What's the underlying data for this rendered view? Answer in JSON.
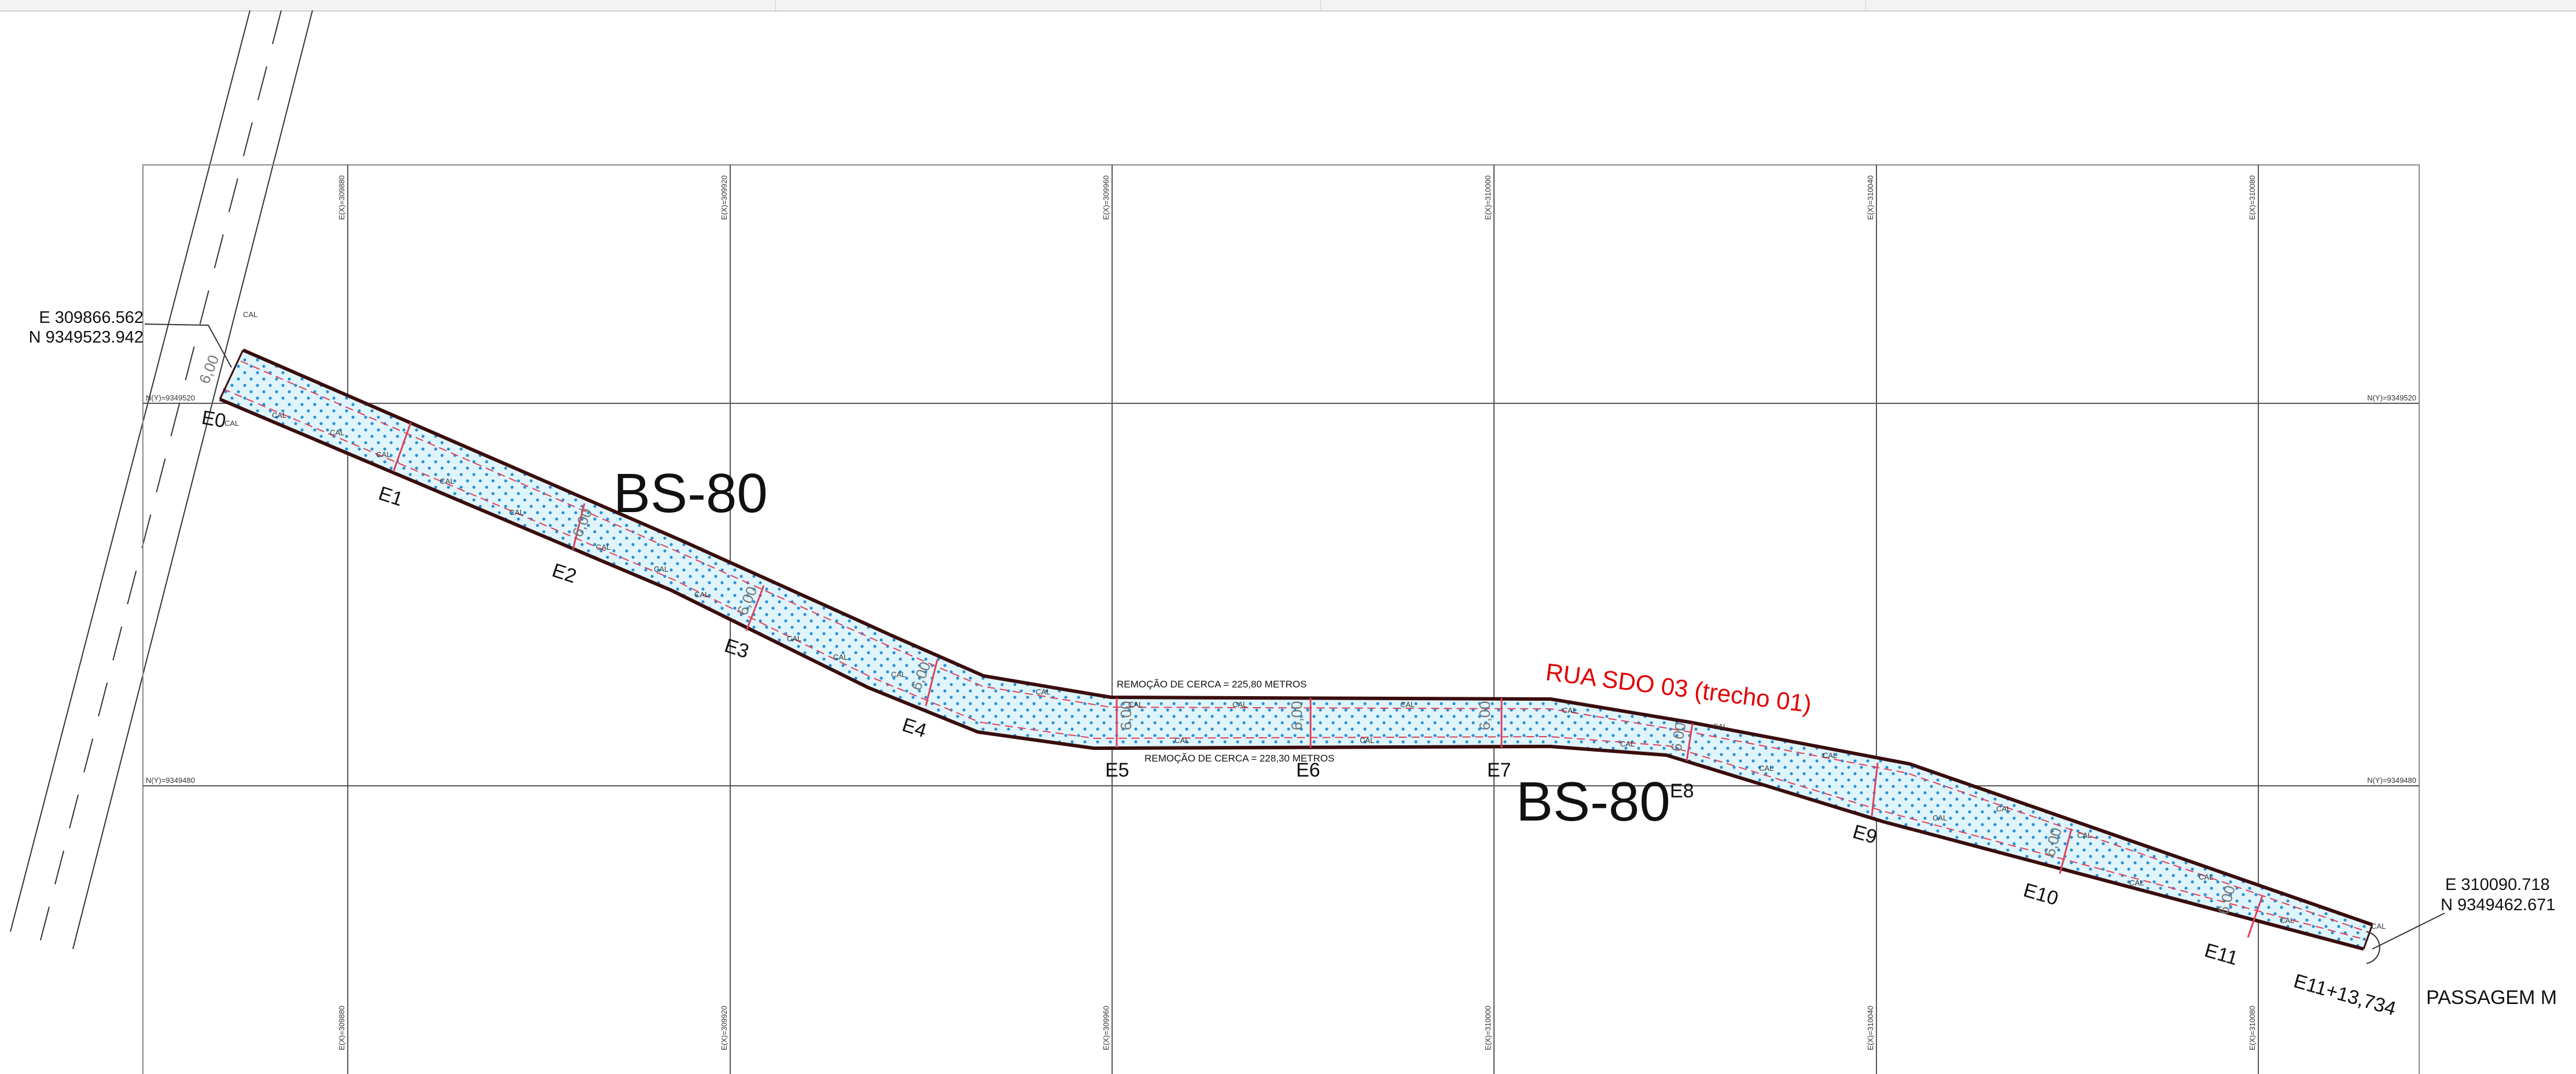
{
  "toolbar": {},
  "drawing": {
    "colors": {
      "border": "#8a8a8a",
      "road_edge": "#3a0d0d",
      "road_fill": "#dff5fb",
      "dots": "#2a8fd8",
      "offset_line": "#e0405a",
      "red_text": "#e00000",
      "text": "#111111"
    },
    "grid_e_labels": [
      "E(X)=309880",
      "E(X)=309920",
      "E(X)=309960",
      "E(X)=310000",
      "E(X)=310040",
      "E(X)=310080"
    ],
    "grid_n_labels": [
      "N(Y)=9349520",
      "N(Y)=9349480"
    ],
    "coord_start": {
      "e": "E 309866.562",
      "n": "N 9349523.942"
    },
    "coord_end": {
      "e": "E 310090.718",
      "n": "N 9349462.671"
    },
    "road_names": [
      "BS-80",
      "BS-80"
    ],
    "street_name": "RUA SDO 03 (trecho 01)",
    "fence_top": "REMOÇÃO DE CERCA = 225,80 METROS",
    "fence_bottom": "REMOÇÃO DE CERCA = 228,30 METROS",
    "passage": "PASSAGEM M",
    "stations": [
      "E0",
      "E1",
      "E2",
      "E3",
      "E4",
      "E5",
      "E6",
      "E7",
      "E8",
      "E9",
      "E10",
      "E11",
      "E11+13,734"
    ],
    "width_label": "6,00",
    "cal_label": "CAL"
  }
}
